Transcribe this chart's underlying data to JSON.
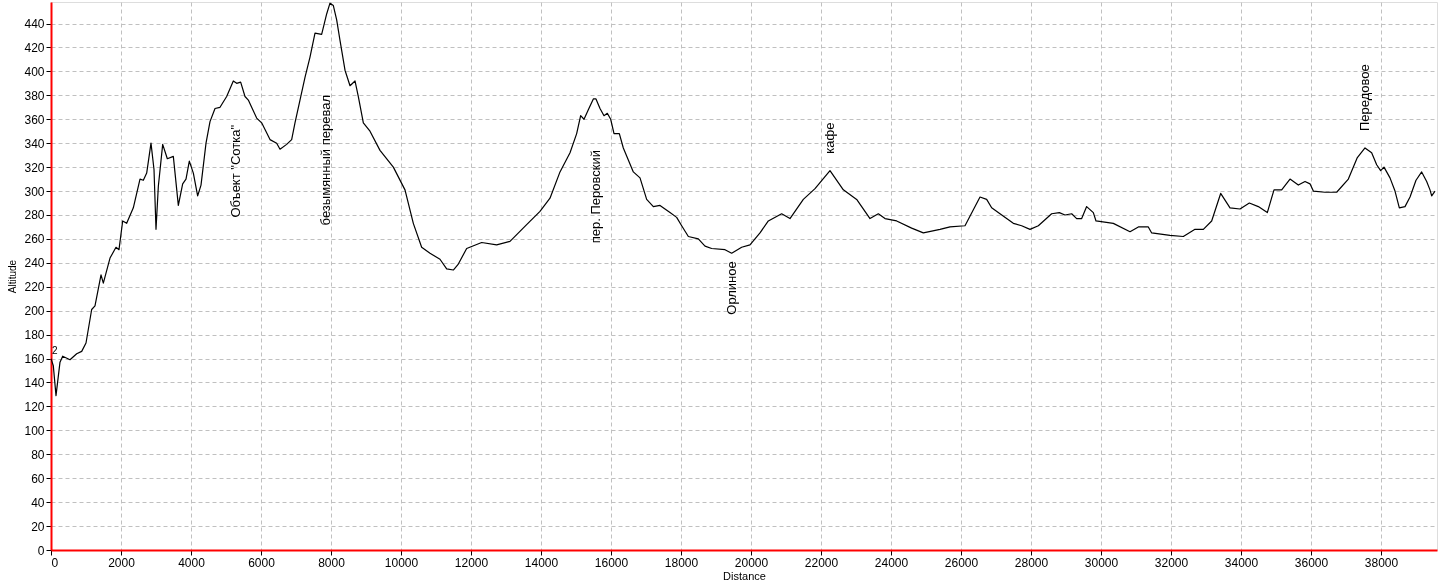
{
  "chart_data": {
    "type": "line",
    "xlabel": "Distance",
    "ylabel": "Altitude",
    "x": [
      0,
      66,
      143,
      257,
      334,
      543,
      734,
      877,
      1000,
      1162,
      1257,
      1429,
      1495,
      1686,
      1857,
      1943,
      2048,
      2162,
      2352,
      2543,
      2638,
      2734,
      2857,
      2943,
      3000,
      3067,
      3191,
      3324,
      3495,
      3638,
      3762,
      3857,
      3952,
      4067,
      4190,
      4286,
      4429,
      4543,
      4686,
      4829,
      5019,
      5209,
      5305,
      5419,
      5543,
      5638,
      5733,
      5876,
      6019,
      6257,
      6448,
      6543,
      6733,
      6876,
      6971,
      7114,
      7257,
      7400,
      7543,
      7733,
      7876,
      7971,
      8067,
      8162,
      8257,
      8400,
      8543,
      8686,
      8781,
      8924,
      9114,
      9400,
      9781,
      10114,
      10352,
      10590,
      10829,
      11114,
      11305,
      11495,
      11638,
      11876,
      12305,
      12733,
      13114,
      13590,
      13971,
      14257,
      14543,
      14829,
      15019,
      15133,
      15229,
      15352,
      15495,
      15571,
      15686,
      15800,
      15895,
      15991,
      16086,
      16238,
      16352,
      16495,
      16638,
      16829,
      17019,
      17210,
      17400,
      17686,
      17876,
      18019,
      18210,
      18495,
      18686,
      18876,
      19257,
      19448,
      19733,
      19971,
      20257,
      20495,
      20876,
      21114,
      21495,
      21829,
      22257,
      22638,
      23019,
      23400,
      23638,
      23829,
      24162,
      24590,
      24924,
      25400,
      25686,
      26114,
      26543,
      26733,
      26876,
      27114,
      27495,
      27733,
      27971,
      28210,
      28590,
      28810,
      28971,
      29162,
      29305,
      29448,
      29590,
      29781,
      29857,
      30352,
      30829,
      31067,
      31352,
      31448,
      31971,
      32352,
      32686,
      32924,
      33162,
      33419,
      33686,
      33971,
      34238,
      34495,
      34752,
      34943,
      35162,
      35400,
      35638,
      35829,
      35971,
      36067,
      36400,
      36733,
      37067,
      37324,
      37543,
      37733,
      37876,
      37990,
      38086,
      38257,
      38400,
      38524,
      38686,
      38829,
      39000,
      39162,
      39305,
      39400,
      39448,
      39543
    ],
    "series": [
      {
        "color": "#000000",
        "values": [
          160,
          154,
          129,
          157,
          162,
          159,
          164,
          166,
          173,
          201,
          204,
          230,
          223,
          244,
          253,
          251,
          275,
          273,
          286,
          310,
          309,
          315,
          340,
          318,
          268,
          304,
          339,
          327,
          329,
          288,
          306,
          310,
          325,
          315,
          296,
          305,
          340,
          358,
          369,
          370,
          379,
          392,
          390,
          391,
          379,
          376,
          370,
          361,
          357,
          343,
          340,
          335,
          339,
          343,
          357,
          376,
          395,
          412,
          432,
          431,
          448,
          457,
          455,
          443,
          426,
          401,
          388,
          392,
          379,
          357,
          350,
          334,
          320,
          301,
          273,
          253,
          248,
          243,
          235,
          234,
          239,
          252,
          257,
          255,
          258,
          272,
          283,
          294,
          316,
          332,
          348,
          363,
          360,
          368,
          377,
          377,
          369,
          363,
          365,
          360,
          348,
          348,
          336,
          326,
          316,
          311,
          293,
          287,
          288,
          282,
          278,
          271,
          262,
          260,
          254,
          252,
          251,
          248,
          253,
          255,
          265,
          275,
          281,
          277,
          293,
          302,
          317,
          301,
          293,
          277,
          281,
          277,
          275,
          269,
          265,
          268,
          270,
          271,
          295,
          293,
          286,
          281,
          273,
          271,
          268,
          271,
          281,
          282,
          280,
          281,
          277,
          277,
          287,
          282,
          275,
          273,
          266,
          270,
          270,
          265,
          263,
          262,
          268,
          268,
          275,
          298,
          286,
          285,
          290,
          287,
          282,
          301,
          301,
          310,
          305,
          308,
          306,
          300,
          299,
          299,
          310,
          328,
          336,
          332,
          322,
          317,
          320,
          311,
          300,
          286,
          287,
          295,
          309,
          316,
          308,
          301,
          296,
          300
        ]
      }
    ],
    "xlim": [
      0,
      39600
    ],
    "ylim": [
      0,
      458
    ],
    "xticks": [
      0,
      2000,
      4000,
      6000,
      8000,
      10000,
      12000,
      14000,
      16000,
      18000,
      20000,
      22000,
      24000,
      26000,
      28000,
      30000,
      32000,
      34000,
      36000,
      38000
    ],
    "yticks": [
      0,
      20,
      40,
      60,
      80,
      100,
      120,
      140,
      160,
      180,
      200,
      220,
      240,
      260,
      280,
      300,
      320,
      340,
      360,
      380,
      400,
      420,
      440
    ],
    "grid": true,
    "line_style": "solid",
    "annotations": [
      {
        "text": "2",
        "x": 0,
        "y": 160
      },
      "Объект \"Сотка\"",
      "безымянный перевал",
      "пер. Перовский",
      {
        "text": "Орлиное",
        "x": 19448,
        "y": 248
      },
      {
        "text": "кафе",
        "x": 22257,
        "y": 317
      },
      {
        "text": "Передовое",
        "x": 37543,
        "y": 336
      }
    ]
  }
}
